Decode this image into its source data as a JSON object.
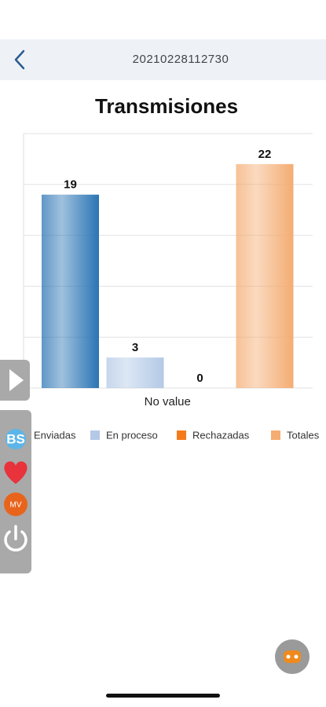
{
  "header": {
    "title": "20210228112730"
  },
  "chart_data": {
    "type": "bar",
    "title": "Transmisiones",
    "categories": [
      "No value"
    ],
    "series": [
      {
        "name": "Enviadas",
        "color": "#2a74b4",
        "values": [
          19
        ]
      },
      {
        "name": "En proceso",
        "color": "#b3c9e6",
        "values": [
          3
        ]
      },
      {
        "name": "Rechazadas",
        "color": "#f47b1c",
        "values": [
          0
        ]
      },
      {
        "name": "Totales",
        "color": "#f4ac72",
        "values": [
          22
        ]
      }
    ],
    "ylim": [
      0,
      25
    ],
    "yticks": [
      0,
      5,
      10,
      15,
      20,
      25
    ],
    "grid": true,
    "legend": "bottom"
  },
  "sidebar": {
    "items": [
      "BS",
      "MV"
    ]
  }
}
